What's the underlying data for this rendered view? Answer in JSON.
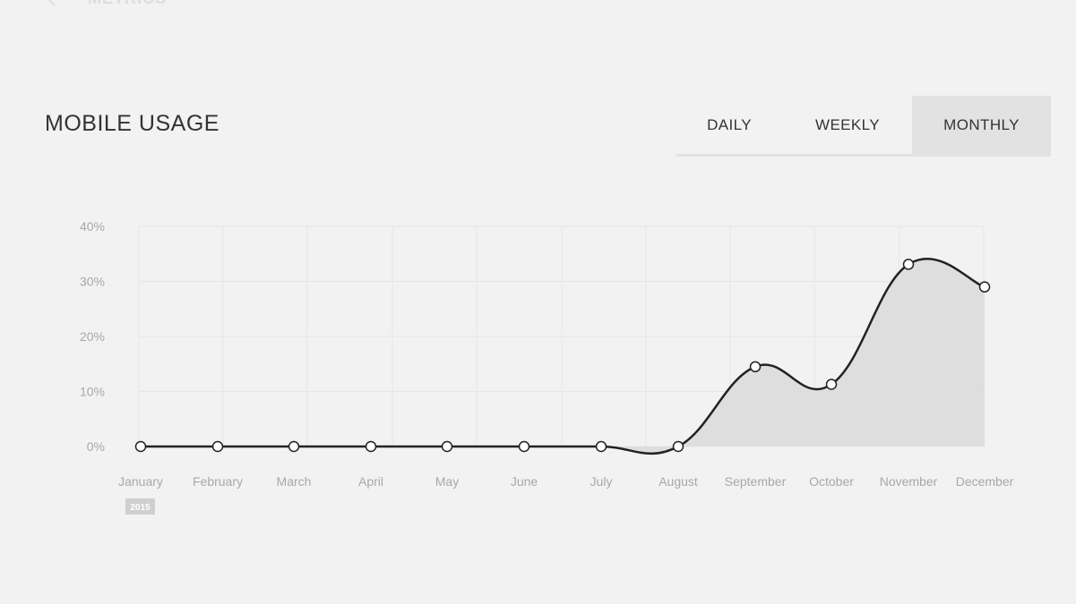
{
  "header": {
    "back_label": "METRICS",
    "title": "MOBILE USAGE"
  },
  "tabs": [
    {
      "label": "DAILY",
      "active": false
    },
    {
      "label": "WEEKLY",
      "active": false
    },
    {
      "label": "MONTHLY",
      "active": true
    }
  ],
  "icons": {
    "back": "arrow-left-icon"
  },
  "colors": {
    "line": "#222222",
    "area": "#dcdcdc",
    "grid": "#e6e6e6",
    "active_tab": "#e2e2e2"
  },
  "chart_data": {
    "type": "area",
    "categories": [
      "January",
      "February",
      "March",
      "April",
      "May",
      "June",
      "July",
      "August",
      "September",
      "October",
      "November",
      "December"
    ],
    "values": [
      0,
      0,
      0,
      0,
      0,
      0,
      0,
      0,
      14.5,
      11.3,
      33.1,
      29
    ],
    "yticks": [
      "0%",
      "10%",
      "20%",
      "30%",
      "40%"
    ],
    "ylim": [
      0,
      40
    ],
    "year_badge": "2015",
    "grid": true
  }
}
